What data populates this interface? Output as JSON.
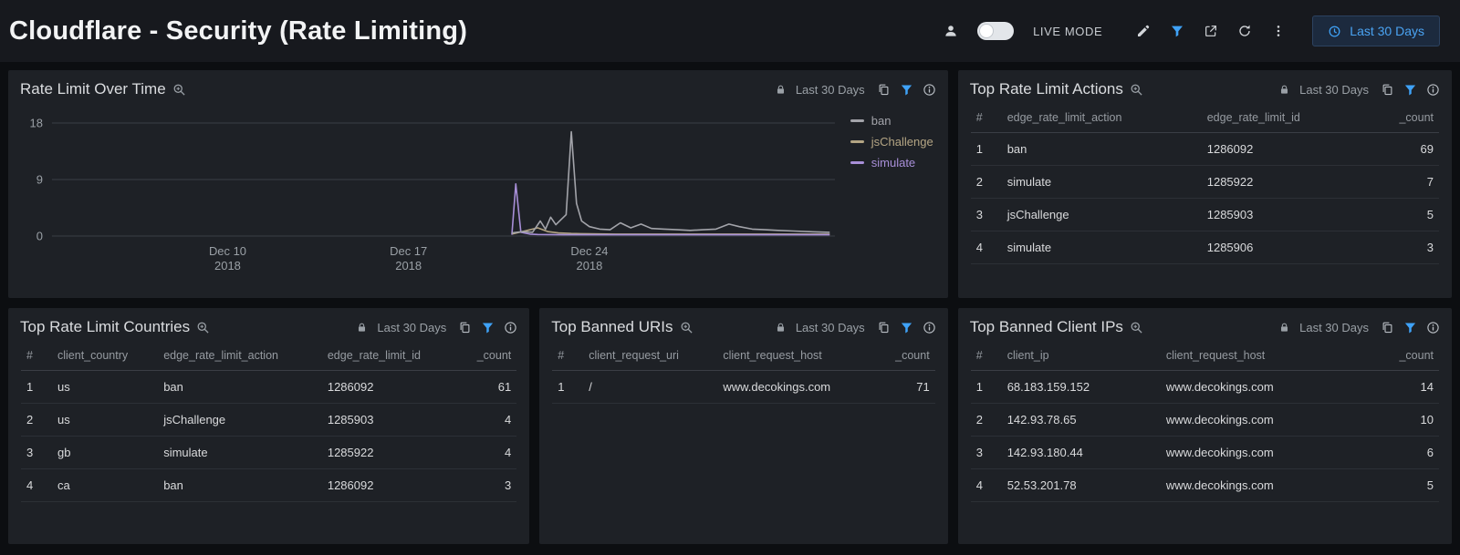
{
  "header": {
    "title": "Cloudflare - Security (Rate Limiting)",
    "live_mode_label": "LIVE MODE",
    "time_range_label": "Last 30 Days",
    "accent_color": "#3fa2f7"
  },
  "panels": {
    "overTime": {
      "title": "Rate Limit Over Time",
      "time_range": "Last 30 Days"
    },
    "topActions": {
      "title": "Top Rate Limit Actions",
      "time_range": "Last 30 Days",
      "table": {
        "columns": [
          "#",
          "edge_rate_limit_action",
          "edge_rate_limit_id",
          "_count"
        ],
        "rows": [
          [
            "1",
            "ban",
            "1286092",
            "69"
          ],
          [
            "2",
            "simulate",
            "1285922",
            "7"
          ],
          [
            "3",
            "jsChallenge",
            "1285903",
            "5"
          ],
          [
            "4",
            "simulate",
            "1285906",
            "3"
          ]
        ]
      }
    },
    "topCountries": {
      "title": "Top Rate Limit Countries",
      "time_range": "Last 30 Days",
      "table": {
        "columns": [
          "#",
          "client_country",
          "edge_rate_limit_action",
          "edge_rate_limit_id",
          "_count"
        ],
        "rows": [
          [
            "1",
            "us",
            "ban",
            "1286092",
            "61"
          ],
          [
            "2",
            "us",
            "jsChallenge",
            "1285903",
            "4"
          ],
          [
            "3",
            "gb",
            "simulate",
            "1285922",
            "4"
          ],
          [
            "4",
            "ca",
            "ban",
            "1286092",
            "3"
          ]
        ]
      }
    },
    "topBannedUris": {
      "title": "Top Banned URIs",
      "time_range": "Last 30 Days",
      "table": {
        "columns": [
          "#",
          "client_request_uri",
          "client_request_host",
          "_count"
        ],
        "rows": [
          [
            "1",
            "/",
            "www.decokings.com",
            "71"
          ]
        ]
      }
    },
    "topBannedIps": {
      "title": "Top Banned Client IPs",
      "time_range": "Last 30 Days",
      "table": {
        "columns": [
          "#",
          "client_ip",
          "client_request_host",
          "_count"
        ],
        "rows": [
          [
            "1",
            "68.183.159.152",
            "www.decokings.com",
            "14"
          ],
          [
            "2",
            "142.93.78.65",
            "www.decokings.com",
            "10"
          ],
          [
            "3",
            "142.93.180.44",
            "www.decokings.com",
            "6"
          ],
          [
            "4",
            "52.53.201.78",
            "www.decokings.com",
            "5"
          ]
        ]
      }
    }
  },
  "chart_data": {
    "type": "line",
    "title": "Rate Limit Over Time",
    "xlabel": "",
    "ylabel": "",
    "ylim": [
      0,
      18
    ],
    "yticks": [
      0,
      9,
      18
    ],
    "grid": "horizontal",
    "legend_position": "top-right",
    "x_unit": "day of month, December 2018 (values > 31 extend into January 2019)",
    "xlim": [
      3.2,
      33.5
    ],
    "xticks": [
      {
        "x": 10,
        "line1": "Dec 10",
        "line2": "2018"
      },
      {
        "x": 17,
        "line1": "Dec 17",
        "line2": "2018"
      },
      {
        "x": 24,
        "line1": "Dec 24",
        "line2": "2018"
      }
    ],
    "series": [
      {
        "name": "ban",
        "color": "#a3a4aa",
        "points": [
          [
            21.0,
            0.5
          ],
          [
            21.4,
            0.7
          ],
          [
            21.8,
            0.6
          ],
          [
            22.1,
            2.4
          ],
          [
            22.3,
            1.1
          ],
          [
            22.5,
            3.0
          ],
          [
            22.7,
            1.8
          ],
          [
            22.9,
            2.6
          ],
          [
            23.1,
            3.4
          ],
          [
            23.3,
            16.6
          ],
          [
            23.5,
            5.2
          ],
          [
            23.7,
            2.4
          ],
          [
            24.0,
            1.5
          ],
          [
            24.4,
            1.1
          ],
          [
            24.8,
            1.0
          ],
          [
            25.2,
            2.1
          ],
          [
            25.6,
            1.3
          ],
          [
            26.0,
            1.9
          ],
          [
            26.4,
            1.2
          ],
          [
            26.9,
            1.1
          ],
          [
            27.4,
            1.0
          ],
          [
            27.9,
            0.9
          ],
          [
            28.4,
            1.0
          ],
          [
            28.9,
            1.1
          ],
          [
            29.4,
            1.9
          ],
          [
            29.8,
            1.5
          ],
          [
            30.3,
            1.1
          ],
          [
            30.8,
            1.0
          ],
          [
            31.3,
            0.9
          ],
          [
            31.9,
            0.8
          ],
          [
            32.5,
            0.7
          ],
          [
            33.3,
            0.6
          ]
        ]
      },
      {
        "name": "jsChallenge",
        "color": "#b4a584",
        "points": [
          [
            21.0,
            0.3
          ],
          [
            21.6,
            0.9
          ],
          [
            22.0,
            1.3
          ],
          [
            22.4,
            0.7
          ],
          [
            22.8,
            0.5
          ],
          [
            23.3,
            0.4
          ],
          [
            24.0,
            0.35
          ],
          [
            25.0,
            0.3
          ],
          [
            26.0,
            0.3
          ],
          [
            27.0,
            0.3
          ],
          [
            28.0,
            0.3
          ],
          [
            29.0,
            0.3
          ],
          [
            30.0,
            0.3
          ],
          [
            31.0,
            0.3
          ],
          [
            32.0,
            0.3
          ],
          [
            33.3,
            0.3
          ]
        ]
      },
      {
        "name": "simulate",
        "color": "#a88fd8",
        "points": [
          [
            21.0,
            0.2
          ],
          [
            21.15,
            8.3
          ],
          [
            21.35,
            0.6
          ],
          [
            21.7,
            0.3
          ],
          [
            22.0,
            0.25
          ],
          [
            23.0,
            0.2
          ],
          [
            24.0,
            0.2
          ],
          [
            25.0,
            0.2
          ],
          [
            26.0,
            0.2
          ],
          [
            27.0,
            0.2
          ],
          [
            28.0,
            0.2
          ],
          [
            29.0,
            0.2
          ],
          [
            30.0,
            0.2
          ],
          [
            31.0,
            0.2
          ],
          [
            32.0,
            0.2
          ],
          [
            33.3,
            0.2
          ]
        ]
      }
    ]
  }
}
